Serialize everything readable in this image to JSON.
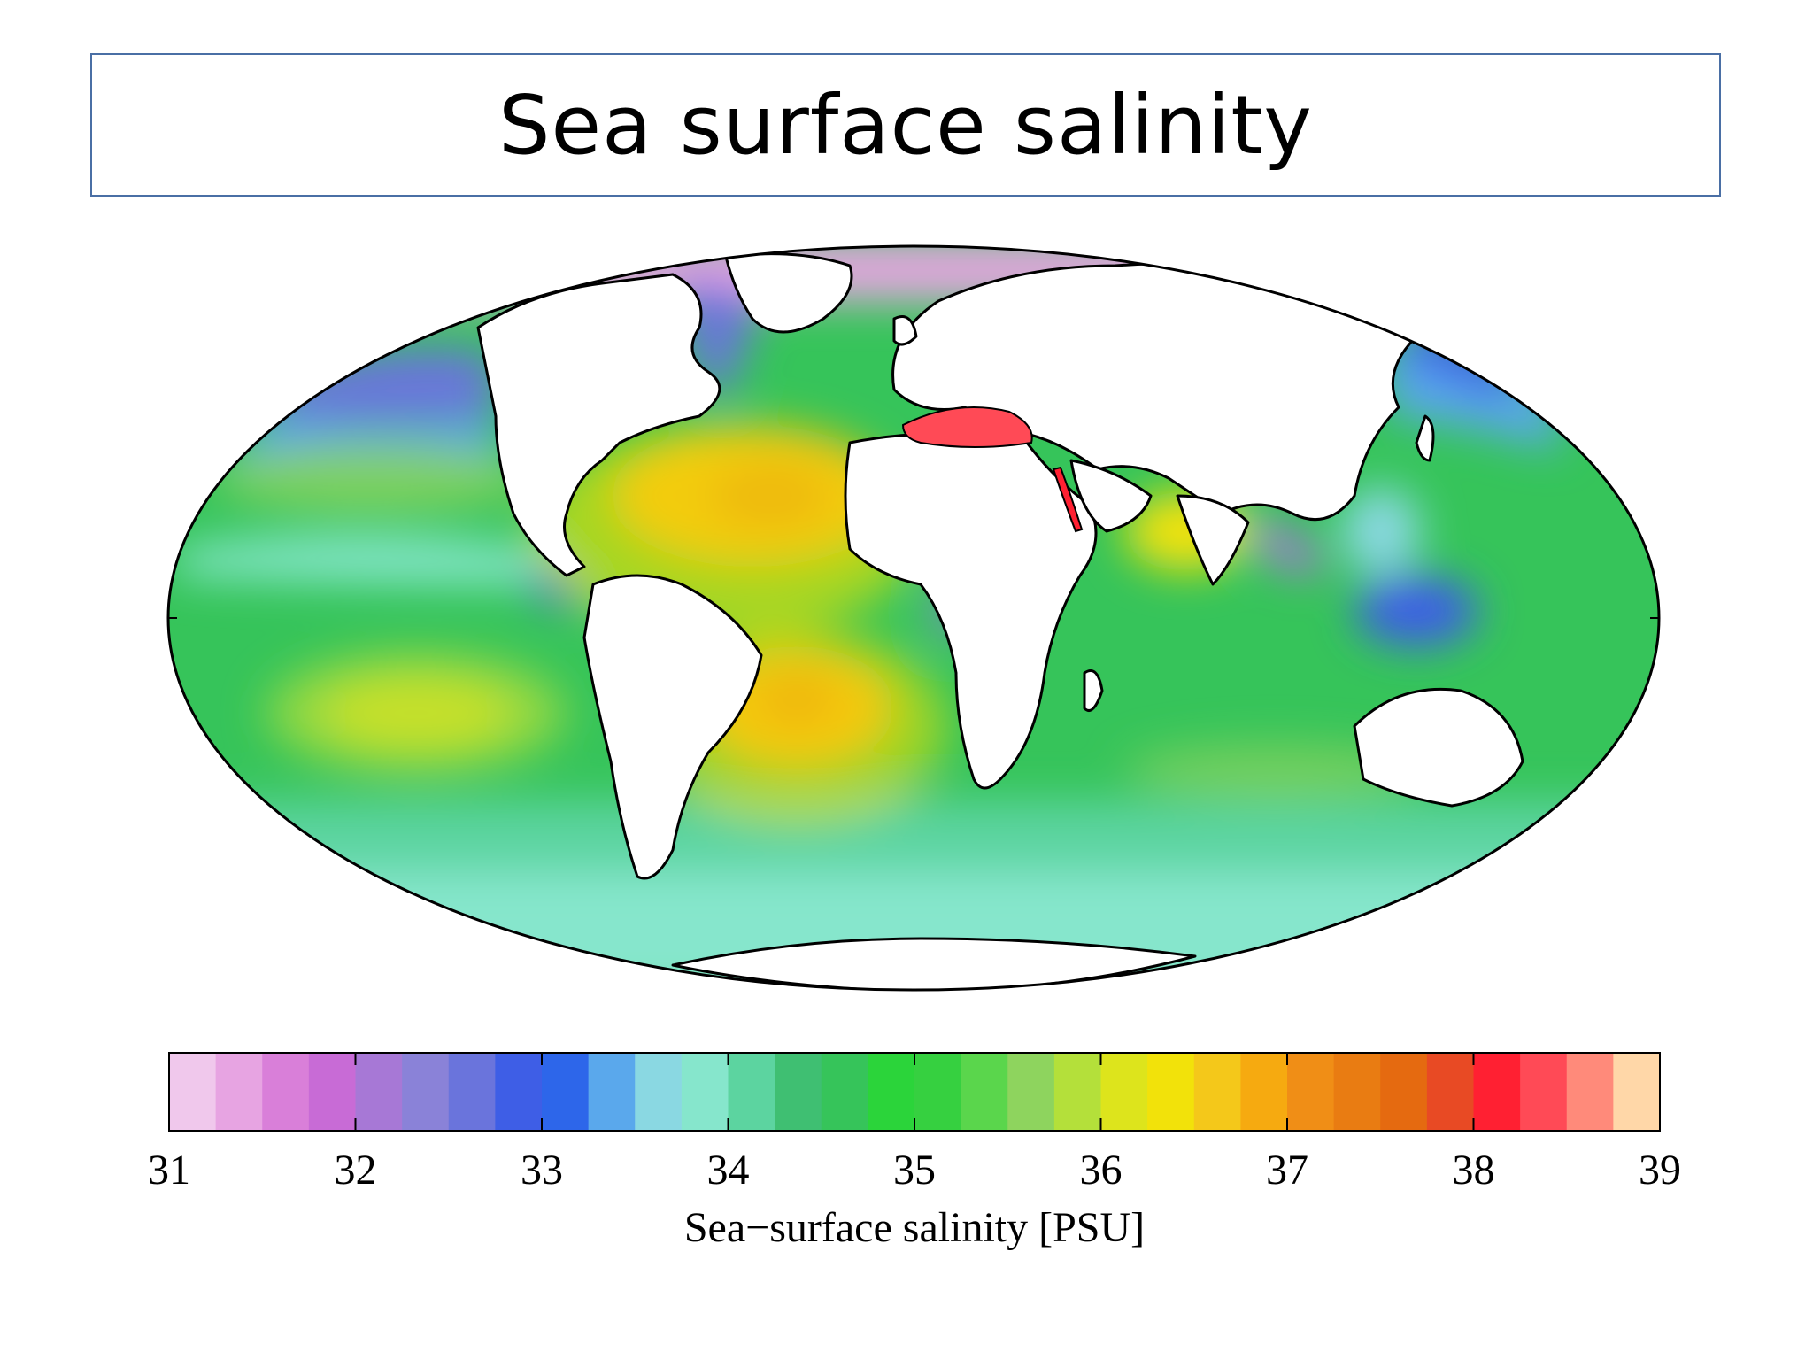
{
  "slide": {
    "title": "Sea surface salinity"
  },
  "colorbar": {
    "label": "Sea−surface salinity [PSU]",
    "min": 31,
    "max": 39,
    "step": 0.25,
    "ticks": [
      "31",
      "32",
      "33",
      "34",
      "35",
      "36",
      "37",
      "38",
      "39"
    ],
    "colors": [
      "#f0c8ec",
      "#e7a4e2",
      "#d97fd9",
      "#c86bd6",
      "#a778d6",
      "#8a82d8",
      "#6a74dc",
      "#3e5ee6",
      "#2d66ea",
      "#5aa8ec",
      "#8ad8e2",
      "#86e6cc",
      "#5cd4a0",
      "#3fbf72",
      "#36c45a",
      "#2bd43a",
      "#36d040",
      "#5ad64c",
      "#8ed45e",
      "#b4e03a",
      "#dde41c",
      "#f2e20a",
      "#f4c81a",
      "#f6aa10",
      "#f08e16",
      "#e97c12",
      "#e56a10",
      "#e84a24",
      "#ff2032",
      "#ff4a56",
      "#ff8a7a",
      "#ffd7a8"
    ]
  },
  "map": {
    "projection": "Mollweide",
    "variable": "Sea-surface salinity",
    "unit": "PSU",
    "land_color": "#ffffff",
    "coast_color": "#000000"
  }
}
